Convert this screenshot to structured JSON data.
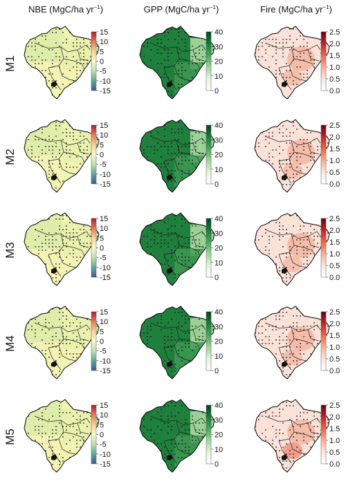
{
  "columns": [
    {
      "id": "nbe",
      "title": "NBE (MgC/ha yr",
      "unit_sup": "−1",
      "title_end": ")",
      "colorbar": {
        "ticks": [
          "15",
          "10",
          "5",
          "0",
          "-5",
          "-10",
          "-15"
        ],
        "colors": [
          "#b2182b",
          "#e8785e",
          "#f6d59a",
          "#fbf7c8",
          "#bfe3a8",
          "#5aaa9c",
          "#3d5a9e"
        ]
      }
    },
    {
      "id": "gpp",
      "title": "GPP (MgC/ha yr",
      "unit_sup": "−1",
      "title_end": ")",
      "colorbar": {
        "ticks": [
          "40",
          "30",
          "20",
          "10",
          "0"
        ],
        "colors": [
          "#00441b",
          "#1b7a3a",
          "#4aa35e",
          "#9fd39a",
          "#e6f5e0",
          "#ffffff"
        ]
      }
    },
    {
      "id": "fire",
      "title": "Fire (MgC/ha yr",
      "unit_sup": "−1",
      "title_end": ")",
      "colorbar": {
        "ticks": [
          "2.5",
          "2.0",
          "1.5",
          "1.0",
          "0.5",
          "0.0"
        ],
        "colors": [
          "#67000d",
          "#c0262c",
          "#ef6548",
          "#fcae91",
          "#fde6dc",
          "#ffffff"
        ]
      }
    }
  ],
  "rows": [
    {
      "label": "M1"
    },
    {
      "label": "M2"
    },
    {
      "label": "M3"
    },
    {
      "label": "M4"
    },
    {
      "label": "M5"
    }
  ],
  "map_fill": {
    "nbe": [
      "#f3f3b4",
      "#e4eea8",
      "#d4e9a4"
    ],
    "gpp": [
      "#1f7f3c",
      "#3e9a52",
      "#a9d9a1"
    ],
    "fire": [
      "#fbe2d8",
      "#f4b9a4",
      "#ee8f77"
    ]
  },
  "colors": {
    "background": "#ffffff",
    "outline": "#000000"
  }
}
